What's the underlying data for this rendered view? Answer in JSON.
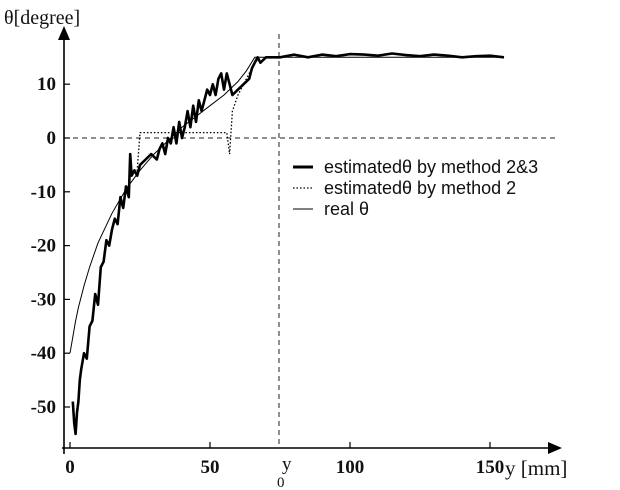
{
  "chart_data": {
    "type": "line",
    "title": "",
    "ylabel": "θ[degree]",
    "xlabel": "y [mm]",
    "xlim": [
      -2,
      160
    ],
    "ylim": [
      -56,
      19
    ],
    "x_ticks": [
      {
        "value": 0,
        "label": "0"
      },
      {
        "value": 50,
        "label": "50"
      },
      {
        "value": 100,
        "label": "100"
      },
      {
        "value": 150,
        "label": "150"
      }
    ],
    "y_ticks": [
      {
        "value": 10,
        "label": "10"
      },
      {
        "value": 0,
        "label": "0"
      },
      {
        "value": -10,
        "label": "-10"
      },
      {
        "value": -20,
        "label": "-20"
      },
      {
        "value": -30,
        "label": "-30"
      },
      {
        "value": -40,
        "label": "-40"
      },
      {
        "value": -50,
        "label": "-50"
      }
    ],
    "reference_lines": {
      "horizontal_y": 0,
      "vertical_x": 65,
      "vertical_label": "y",
      "vertical_label_sub": "0"
    },
    "legend_position": "right",
    "series": [
      {
        "name": "estimatedθ  by method 2&3",
        "style": "thick",
        "x": [
          1,
          1.5,
          2,
          2.5,
          3,
          3.5,
          4,
          5,
          6,
          7,
          8,
          9,
          10,
          11,
          12,
          13,
          14,
          15,
          16,
          17,
          18,
          19,
          20,
          21,
          21.5,
          22,
          23,
          24,
          25,
          27,
          29,
          31,
          32,
          33,
          34,
          35,
          36,
          37,
          38,
          39,
          40,
          41,
          42,
          43,
          44,
          45,
          46,
          47,
          48,
          49,
          50,
          51,
          52,
          53,
          54,
          55,
          56,
          57,
          58,
          60,
          62,
          64,
          65,
          66,
          67,
          68,
          70,
          75,
          80,
          85,
          90,
          95,
          100,
          105,
          110,
          115,
          120,
          125,
          130,
          135,
          140,
          145,
          150,
          155
        ],
        "values": [
          -49,
          -53,
          -55,
          -51,
          -49,
          -45,
          -43,
          -40,
          -41,
          -35,
          -34,
          -29,
          -31,
          -24,
          -23,
          -19,
          -20,
          -17,
          -15,
          -16,
          -11,
          -13,
          -9,
          -11,
          -3,
          -7,
          -6,
          -7,
          -5,
          -4,
          -3,
          -4,
          -2,
          -1,
          -3,
          0,
          -1,
          2,
          -1,
          3,
          0,
          2,
          5,
          2,
          6,
          3,
          7,
          5,
          7,
          9,
          8,
          10,
          8,
          11,
          12,
          9,
          12,
          10,
          8,
          9,
          10,
          11,
          13,
          14,
          15,
          14,
          15,
          15,
          15.5,
          15,
          15.5,
          15.2,
          15.6,
          15.5,
          15.3,
          15.7,
          15.4,
          15.2,
          15.5,
          15.3,
          15,
          15.2,
          15.3,
          15
        ]
      },
      {
        "name": "estimatedθ  by method 2",
        "style": "dotted",
        "x": [
          22,
          24,
          25,
          40,
          50,
          55,
          56,
          57,
          58,
          60,
          62,
          64,
          66,
          68
        ],
        "values": [
          -7,
          -6,
          1,
          1,
          1,
          1,
          1,
          -3,
          5,
          8,
          10,
          12,
          14,
          15
        ]
      },
      {
        "name": "real θ",
        "style": "thin",
        "x": [
          0,
          1,
          2,
          3,
          5,
          7,
          10,
          15,
          20,
          25,
          30,
          35,
          40,
          45,
          50,
          55,
          60,
          63,
          66,
          70,
          80,
          90,
          100,
          110,
          120,
          130,
          140,
          150,
          155
        ],
        "values": [
          -40,
          -37,
          -34,
          -31.5,
          -27.5,
          -24,
          -19.5,
          -14,
          -9.5,
          -6,
          -3,
          -0.5,
          2,
          4,
          6,
          8,
          10.5,
          12.5,
          15,
          15,
          15,
          15,
          15,
          15,
          15,
          15,
          15,
          15,
          15
        ]
      }
    ]
  }
}
